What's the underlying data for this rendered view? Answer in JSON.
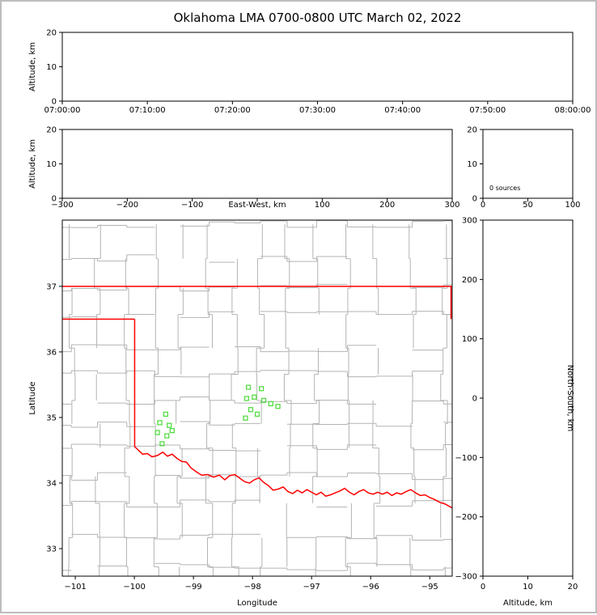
{
  "title": "Oklahoma LMA 0700-0800 UTC March 02, 2022",
  "colors": {
    "axis": "#000000",
    "county": "#b3b3b3",
    "state_border": "#ff0000",
    "station": "#55dd44",
    "background": "#ffffff",
    "frame": "#bdbdbd"
  },
  "chart_data": [
    {
      "panel": "time-height",
      "type": "scatter",
      "ylabel": "Altitude, km",
      "xlim": [
        0,
        6
      ],
      "x_tick_values": [
        0,
        1,
        2,
        3,
        4,
        5,
        6
      ],
      "x_tick_labels": [
        "07:00:00",
        "07:10:00",
        "07:20:00",
        "07:30:00",
        "07:40:00",
        "07:50:00",
        "08:00:00"
      ],
      "ylim": [
        0,
        20
      ],
      "y_tick_values": [
        0,
        10,
        20
      ],
      "y_tick_labels": [
        "0",
        "10",
        "20"
      ],
      "points": []
    },
    {
      "panel": "east-west-height",
      "type": "scatter",
      "xlabel": "East-West, km",
      "ylabel": "Altitude, km",
      "xlim": [
        -300,
        300
      ],
      "x_tick_values": [
        -300,
        -200,
        -100,
        100,
        200,
        300
      ],
      "x_tick_labels": [
        "−300",
        "−200",
        "−100",
        "100",
        "200",
        "300"
      ],
      "x_tick_marks": [
        -300,
        -200,
        -100,
        0,
        100,
        200,
        300
      ],
      "ylim": [
        0,
        20
      ],
      "y_tick_values": [
        0,
        10,
        20
      ],
      "y_tick_labels": [
        "0",
        "10",
        "20"
      ],
      "points": []
    },
    {
      "panel": "altitude-histogram",
      "type": "line",
      "annotation": "0 sources",
      "xlim": [
        0,
        100
      ],
      "x_tick_values": [
        0,
        50,
        100
      ],
      "x_tick_labels": [
        "0",
        "50",
        "100"
      ],
      "ylim": [
        0,
        20
      ],
      "y_tick_values": [
        0,
        10,
        20
      ],
      "y_tick_labels": [
        "0",
        "10",
        "20"
      ],
      "values": []
    },
    {
      "panel": "plan-view-map",
      "type": "scatter",
      "xlabel": "Longitude",
      "ylabel": "Latitude",
      "xlim": [
        -101.22,
        -94.62
      ],
      "ylim": [
        32.58,
        38.01
      ],
      "x_tick_values": [
        -101,
        -100,
        -99,
        -98,
        -97,
        -96,
        -95
      ],
      "x_tick_labels": [
        "−101",
        "−100",
        "−99",
        "−98",
        "−97",
        "−96",
        "−95"
      ],
      "y_tick_values": [
        33,
        34,
        35,
        36,
        37
      ],
      "y_tick_labels": [
        "33",
        "34",
        "35",
        "36",
        "37"
      ],
      "stations": [
        [
          -98.07,
          35.46
        ],
        [
          -97.85,
          35.44
        ],
        [
          -98.1,
          35.29
        ],
        [
          -97.97,
          35.31
        ],
        [
          -97.81,
          35.26
        ],
        [
          -97.69,
          35.21
        ],
        [
          -97.57,
          35.17
        ],
        [
          -98.03,
          35.12
        ],
        [
          -97.92,
          35.05
        ],
        [
          -98.12,
          34.99
        ],
        [
          -99.47,
          35.05
        ],
        [
          -99.57,
          34.92
        ],
        [
          -99.41,
          34.88
        ],
        [
          -99.36,
          34.8
        ],
        [
          -99.61,
          34.77
        ],
        [
          -99.45,
          34.72
        ],
        [
          -99.53,
          34.6
        ]
      ],
      "state_border": [
        [
          [
            -101.22,
            37.0
          ],
          [
            -94.62,
            37.0
          ]
        ],
        [
          [
            -94.64,
            37.0
          ],
          [
            -94.64,
            36.5
          ]
        ],
        [
          [
            -101.22,
            36.5
          ],
          [
            -99.995,
            36.5
          ]
        ],
        [
          [
            -99.995,
            36.5
          ],
          [
            -99.995,
            34.56
          ]
        ]
      ],
      "red_river": [
        [
          -100.0,
          34.56
        ],
        [
          -99.93,
          34.5
        ],
        [
          -99.86,
          34.44
        ],
        [
          -99.78,
          34.45
        ],
        [
          -99.7,
          34.4
        ],
        [
          -99.61,
          34.42
        ],
        [
          -99.52,
          34.47
        ],
        [
          -99.44,
          34.41
        ],
        [
          -99.36,
          34.44
        ],
        [
          -99.27,
          34.37
        ],
        [
          -99.2,
          34.33
        ],
        [
          -99.12,
          34.32
        ],
        [
          -99.04,
          34.23
        ],
        [
          -98.95,
          34.17
        ],
        [
          -98.86,
          34.12
        ],
        [
          -98.76,
          34.13
        ],
        [
          -98.66,
          34.09
        ],
        [
          -98.56,
          34.12
        ],
        [
          -98.47,
          34.05
        ],
        [
          -98.39,
          34.11
        ],
        [
          -98.3,
          34.13
        ],
        [
          -98.21,
          34.07
        ],
        [
          -98.13,
          34.02
        ],
        [
          -98.05,
          34.0
        ],
        [
          -97.97,
          34.05
        ],
        [
          -97.89,
          34.08
        ],
        [
          -97.81,
          34.01
        ],
        [
          -97.73,
          33.96
        ],
        [
          -97.65,
          33.89
        ],
        [
          -97.56,
          33.91
        ],
        [
          -97.48,
          33.94
        ],
        [
          -97.4,
          33.87
        ],
        [
          -97.32,
          33.84
        ],
        [
          -97.24,
          33.89
        ],
        [
          -97.16,
          33.85
        ],
        [
          -97.08,
          33.9
        ],
        [
          -97.0,
          33.86
        ],
        [
          -96.92,
          33.82
        ],
        [
          -96.84,
          33.86
        ],
        [
          -96.76,
          33.8
        ],
        [
          -96.68,
          33.82
        ],
        [
          -96.6,
          33.85
        ],
        [
          -96.52,
          33.88
        ],
        [
          -96.44,
          33.92
        ],
        [
          -96.36,
          33.86
        ],
        [
          -96.28,
          33.82
        ],
        [
          -96.2,
          33.87
        ],
        [
          -96.12,
          33.9
        ],
        [
          -96.04,
          33.85
        ],
        [
          -95.96,
          33.83
        ],
        [
          -95.88,
          33.86
        ],
        [
          -95.8,
          33.83
        ],
        [
          -95.72,
          33.86
        ],
        [
          -95.64,
          33.81
        ],
        [
          -95.56,
          33.85
        ],
        [
          -95.48,
          33.83
        ],
        [
          -95.4,
          33.87
        ],
        [
          -95.32,
          33.9
        ],
        [
          -95.24,
          33.85
        ],
        [
          -95.16,
          33.81
        ],
        [
          -95.08,
          33.82
        ],
        [
          -95.0,
          33.78
        ],
        [
          -94.92,
          33.75
        ],
        [
          -94.84,
          33.71
        ],
        [
          -94.74,
          33.68
        ],
        [
          -94.62,
          33.62
        ]
      ]
    },
    {
      "panel": "north-south-height",
      "type": "scatter",
      "xlabel": "Altitude, km",
      "ylabel": "North-South, km",
      "xlim": [
        0,
        20
      ],
      "x_tick_values": [
        0,
        10,
        20
      ],
      "x_tick_labels": [
        "0",
        "10",
        "20"
      ],
      "ylim": [
        -300,
        300
      ],
      "y_tick_values": [
        -300,
        -200,
        -100,
        0,
        100,
        200,
        300
      ],
      "y_tick_labels": [
        "−300",
        "−200",
        "−100",
        "0",
        "100",
        "200",
        "300"
      ],
      "points": []
    }
  ]
}
